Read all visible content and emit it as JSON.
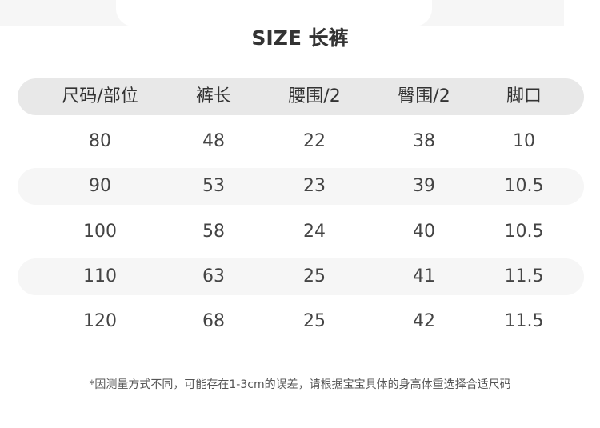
{
  "title": "SIZE 长裤",
  "table": {
    "headers": [
      "尺码/部位",
      "裤长",
      "腰围/2",
      "臀围/2",
      "脚口"
    ],
    "rows": [
      [
        "80",
        "48",
        "22",
        "38",
        "10"
      ],
      [
        "90",
        "53",
        "23",
        "39",
        "10.5"
      ],
      [
        "100",
        "58",
        "24",
        "40",
        "10.5"
      ],
      [
        "110",
        "63",
        "25",
        "41",
        "11.5"
      ],
      [
        "120",
        "68",
        "25",
        "42",
        "11.5"
      ]
    ]
  },
  "note": "*因测量方式不同，可能存在1-3cm的误差，请根据宝宝具体的身高体重选择合适尺码",
  "colors": {
    "header_bg": "#e8e8e8",
    "stripe_bg": "#f6f6f6",
    "text": "#333333"
  }
}
